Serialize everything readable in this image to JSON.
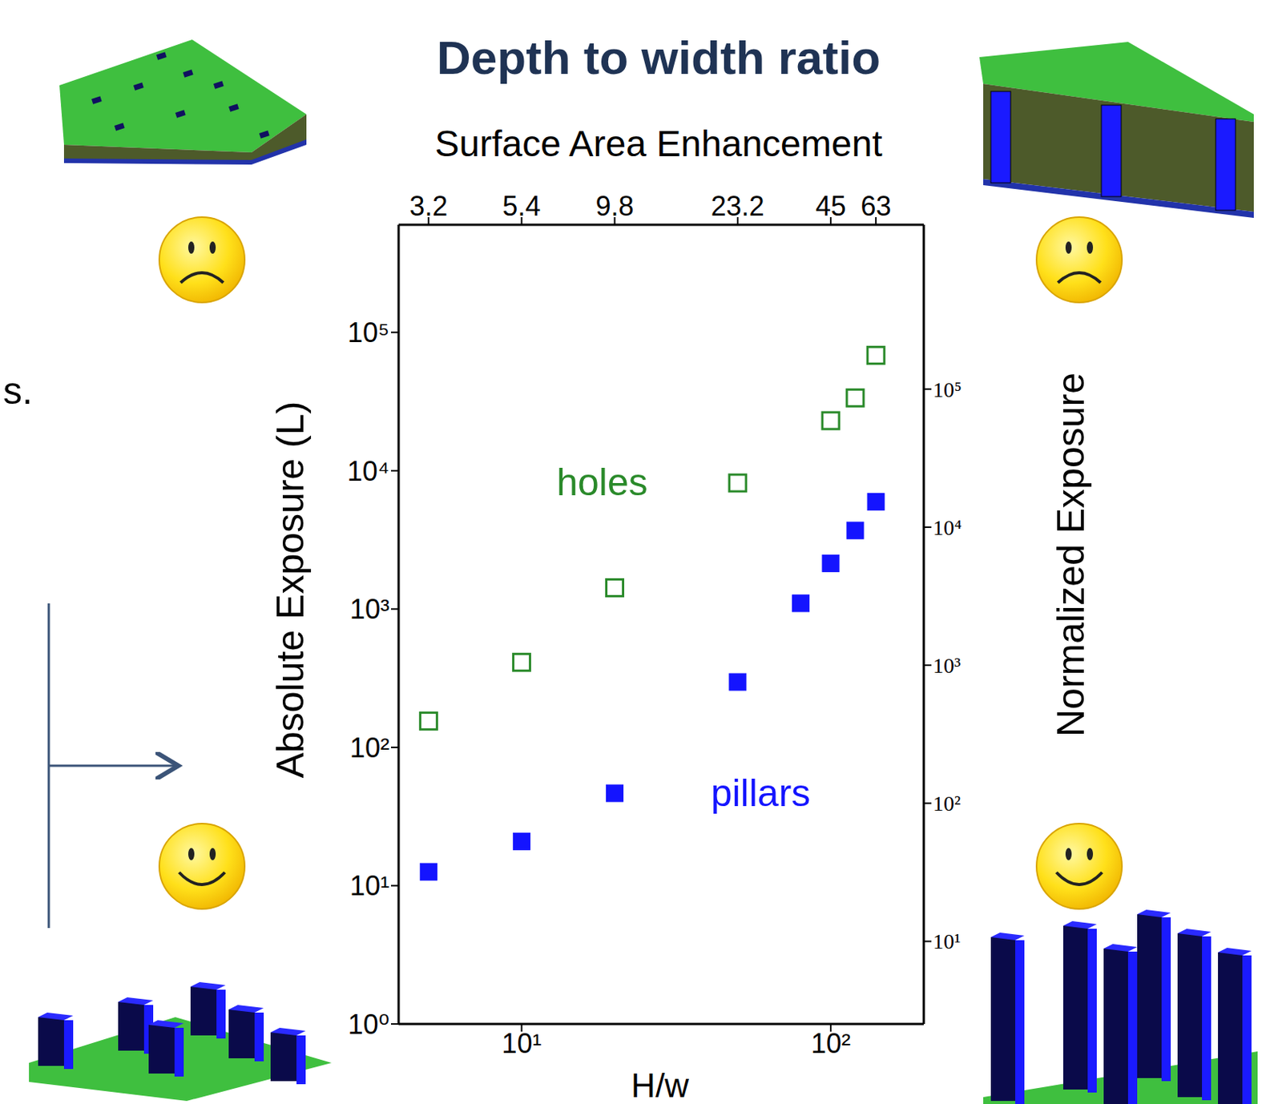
{
  "chart_data": {
    "type": "scatter",
    "title": "Depth to width ratio",
    "x_label": "H/w",
    "y_label": "Absolute Exposure (L)",
    "y2_label": "Normalized Exposure",
    "x2_label": "Surface Area Enhancement",
    "log": true,
    "xlim": [
      4,
      200
    ],
    "xticks": [
      {
        "value": 10,
        "label": "10¹"
      },
      {
        "value": 100,
        "label": "10²"
      }
    ],
    "x2ticks": [
      {
        "value": 5,
        "label": "3.2"
      },
      {
        "value": 10,
        "label": "5.4"
      },
      {
        "value": 20,
        "label": "9.8"
      },
      {
        "value": 50,
        "label": "23.2"
      },
      {
        "value": 100,
        "label": "45"
      },
      {
        "value": 140,
        "label": "63"
      }
    ],
    "ylim": [
      1,
      600000
    ],
    "yticks": [
      {
        "value": 1,
        "label": "10⁰"
      },
      {
        "value": 10,
        "label": "10¹"
      },
      {
        "value": 100,
        "label": "10²"
      },
      {
        "value": 1000,
        "label": "10³"
      },
      {
        "value": 10000,
        "label": "10⁴"
      },
      {
        "value": 100000,
        "label": "10⁵"
      }
    ],
    "y2lim": [
      2.52,
      1550000
    ],
    "y2ticks": [
      {
        "value": 10,
        "label": "10¹"
      },
      {
        "value": 100,
        "label": "10²"
      },
      {
        "value": 1000,
        "label": "10³"
      },
      {
        "value": 10000,
        "label": "10⁴"
      },
      {
        "value": 100000,
        "label": "10⁵"
      }
    ],
    "series": [
      {
        "name": "holes",
        "color": "#2a8a2a",
        "marker": "square_open",
        "x": [
          5,
          10,
          20,
          50,
          100,
          120,
          140
        ],
        "values": [
          155,
          412,
          1425,
          8150,
          23000,
          33600,
          68300
        ]
      },
      {
        "name": "pillars",
        "color": "#1414ff",
        "marker": "square",
        "x": [
          5,
          10,
          20,
          50,
          80,
          100,
          120,
          140
        ],
        "values": [
          12.6,
          20.9,
          46.6,
          297,
          1100,
          2140,
          3700,
          5960
        ]
      }
    ],
    "edge_text": "s."
  }
}
